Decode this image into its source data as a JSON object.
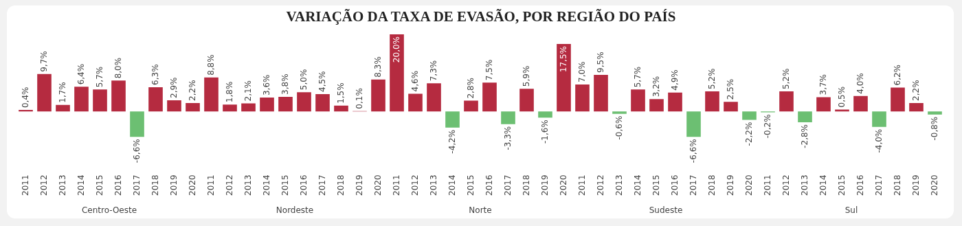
{
  "chart_data": {
    "type": "bar",
    "title": "VARIAÇÃO DA TAXA DE EVASÃO, POR REGIÃO DO PAÍS",
    "categories": [
      "2011",
      "2012",
      "2013",
      "2014",
      "2015",
      "2016",
      "2017",
      "2018",
      "2019",
      "2020",
      "2011",
      "2012",
      "2013",
      "2014",
      "2015",
      "2016",
      "2017",
      "2018",
      "2019",
      "2020",
      "2011",
      "2012",
      "2013",
      "2014",
      "2015",
      "2016",
      "2017",
      "2018",
      "2019",
      "2020",
      "2011",
      "2012",
      "2013",
      "2014",
      "2015",
      "2016",
      "2017",
      "2018",
      "2019",
      "2020",
      "2011",
      "2012",
      "2013",
      "2014",
      "2015",
      "2016",
      "2017",
      "2018",
      "2019",
      "2020"
    ],
    "values": [
      0.4,
      9.7,
      1.7,
      6.4,
      5.7,
      8.0,
      -6.6,
      6.3,
      2.9,
      2.2,
      8.8,
      1.8,
      2.1,
      3.6,
      3.8,
      5.0,
      4.5,
      1.5,
      0.1,
      8.3,
      20.0,
      4.6,
      7.3,
      -4.2,
      2.8,
      7.5,
      -3.3,
      5.9,
      -1.6,
      17.5,
      7.0,
      9.5,
      -0.6,
      5.7,
      3.2,
      4.9,
      -6.6,
      5.2,
      2.5,
      -2.2,
      -0.2,
      5.2,
      -2.8,
      3.7,
      0.5,
      4.0,
      -4.0,
      6.2,
      2.2,
      -0.8
    ],
    "value_labels": [
      "0,4%",
      "9,7%",
      "1,7%",
      "6,4%",
      "5,7%",
      "8,0%",
      "-6,6%",
      "6,3%",
      "2,9%",
      "2,2%",
      "8,8%",
      "1,8%",
      "2,1%",
      "3,6%",
      "3,8%",
      "5,0%",
      "4,5%",
      "1,5%",
      "0,1%",
      "8,3%",
      "20,0%",
      "4,6%",
      "7,3%",
      "-4,2%",
      "2,8%",
      "7,5%",
      "-3,3%",
      "5,9%",
      "-1,6%",
      "17,5%",
      "7,0%",
      "9,5%",
      "-0,6%",
      "5,7%",
      "3,2%",
      "4,9%",
      "-6,6%",
      "5,2%",
      "2,5%",
      "-2,2%",
      "-0,2%",
      "5,2%",
      "-2,8%",
      "3,7%",
      "0,5%",
      "4,0%",
      "-4,0%",
      "6,2%",
      "2,2%",
      "-0,8%"
    ],
    "colors": [
      "#b52b40",
      "#b52b40",
      "#b52b40",
      "#b52b40",
      "#b52b40",
      "#b52b40",
      "#6cbf72",
      "#b52b40",
      "#b52b40",
      "#b52b40",
      "#b52b40",
      "#b52b40",
      "#b52b40",
      "#b52b40",
      "#b52b40",
      "#b52b40",
      "#b52b40",
      "#b52b40",
      "#b52b40",
      "#b52b40",
      "#b52b40",
      "#b52b40",
      "#b52b40",
      "#6cbf72",
      "#b52b40",
      "#b52b40",
      "#6cbf72",
      "#b52b40",
      "#6cbf72",
      "#b52b40",
      "#b52b40",
      "#b52b40",
      "#6cbf72",
      "#b52b40",
      "#b52b40",
      "#b52b40",
      "#6cbf72",
      "#b52b40",
      "#b52b40",
      "#6cbf72",
      "#6cbf72",
      "#b52b40",
      "#6cbf72",
      "#b52b40",
      "#b52b40",
      "#b52b40",
      "#6cbf72",
      "#b52b40",
      "#b52b40",
      "#6cbf72"
    ],
    "annotations": [
      "Centro-Oeste",
      "Nordeste",
      "Norte",
      "Sudeste",
      "Sul"
    ],
    "grid": false,
    "legend": false
  }
}
